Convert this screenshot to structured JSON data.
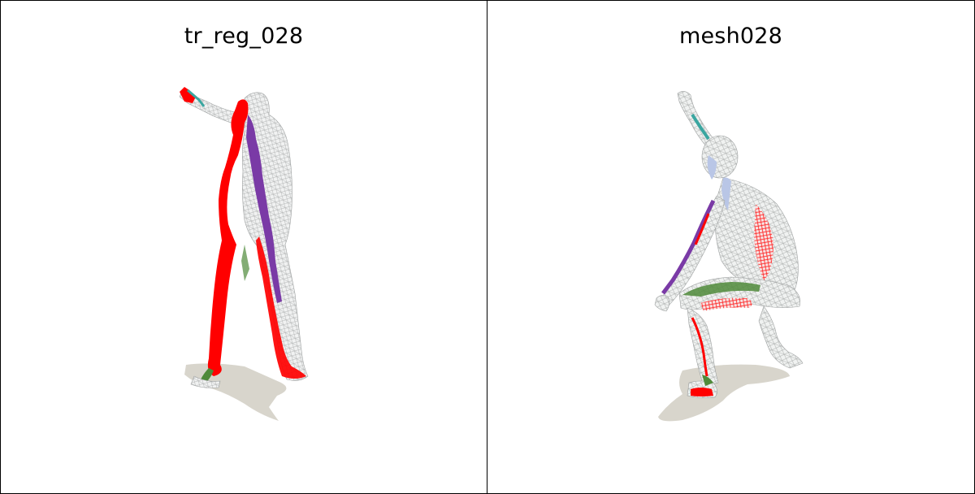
{
  "viewports": [
    {
      "title": "tr_reg_028"
    },
    {
      "title": "mesh028"
    }
  ],
  "colors": {
    "background": "#ffffff",
    "border": "#000000",
    "highlight_red": "#ff0000",
    "highlight_purple": "#7a3aa6",
    "highlight_green": "#4f8a3a",
    "wire_gray": "#b8b8b8",
    "shadow": "#d8d5cc"
  }
}
